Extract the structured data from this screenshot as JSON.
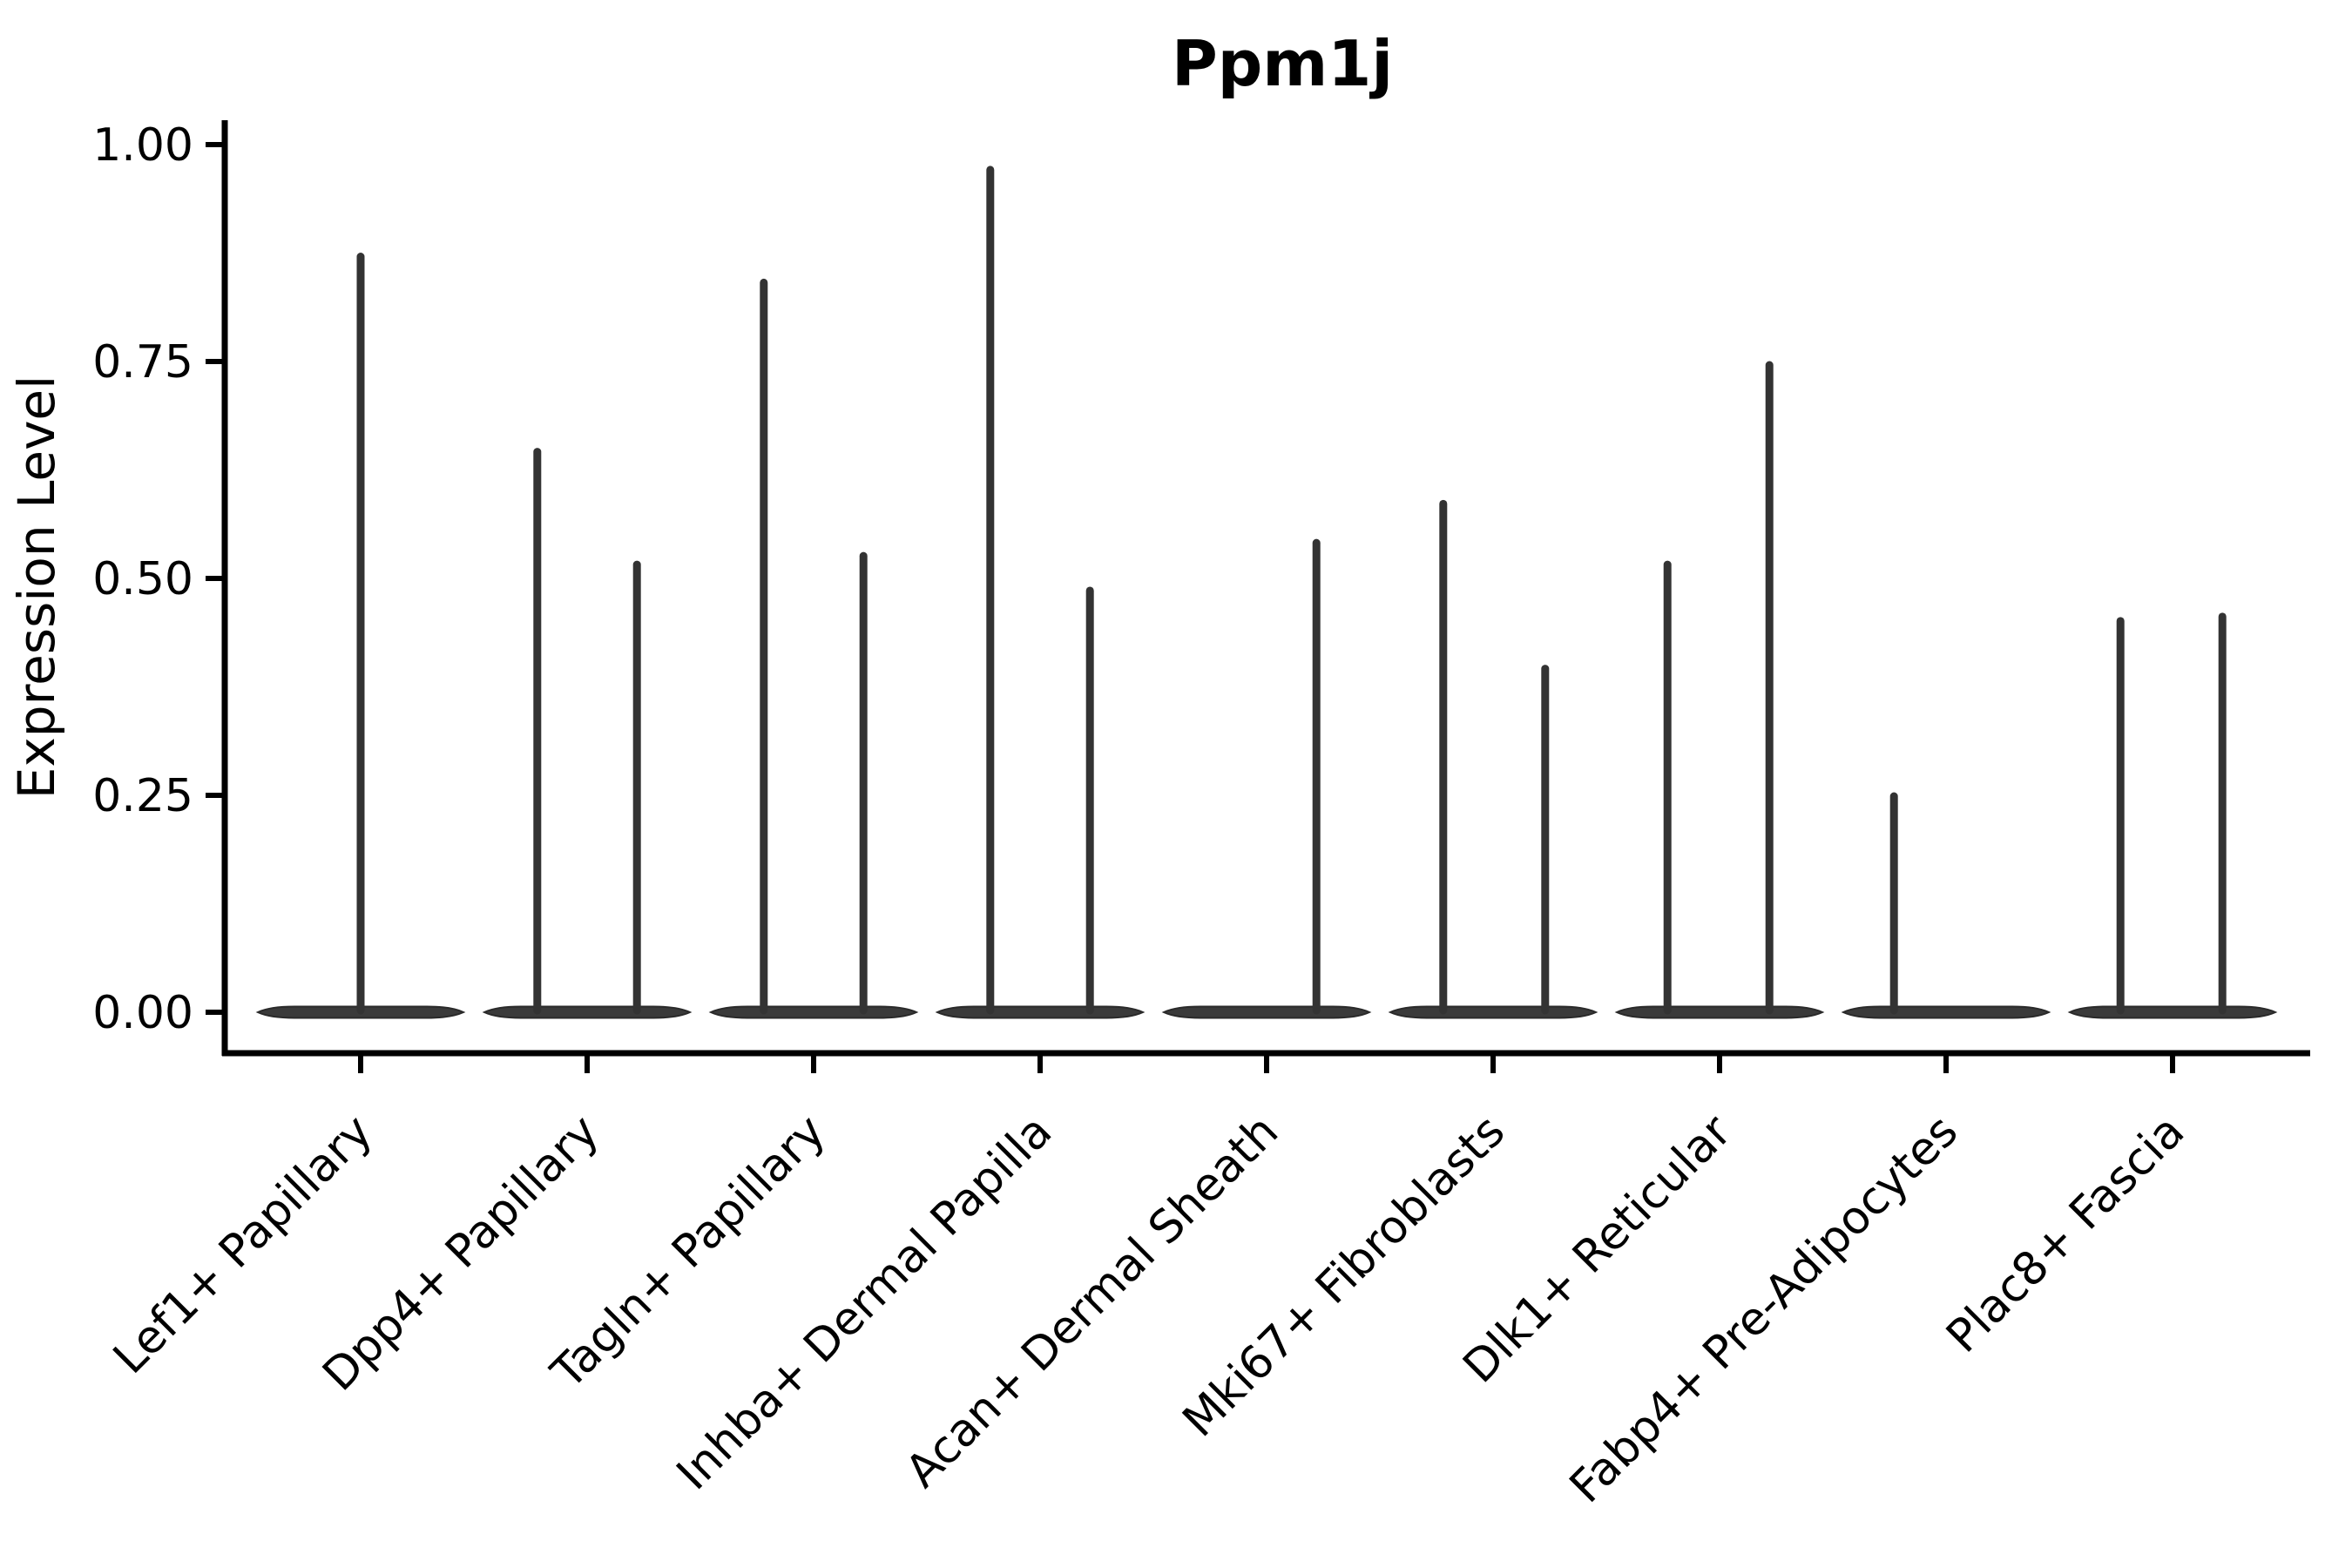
{
  "chart_data": {
    "type": "violin",
    "title": "Ppm1j",
    "ylabel": "Expression Level",
    "xlabel": "",
    "ylim": [
      0.0,
      1.0
    ],
    "grid": false,
    "legend": null,
    "yticks": [
      {
        "value": 0.0,
        "label": "0.00"
      },
      {
        "value": 0.25,
        "label": "0.25"
      },
      {
        "value": 0.5,
        "label": "0.50"
      },
      {
        "value": 0.75,
        "label": "0.75"
      },
      {
        "value": 1.0,
        "label": "1.00"
      }
    ],
    "categories": [
      "Lef1+ Papillary",
      "Dpp4+ Papillary",
      "Tagln+ Papillary",
      "Inhba+ Dermal Papilla",
      "Acan+ Dermal Sheath",
      "Mki67+ Fibroblasts",
      "Dlk1+ Reticular",
      "Fabp4+ Pre-Adipocytes",
      "Plac8+ Fascia"
    ],
    "violins": [
      {
        "category": "Lef1+ Papillary",
        "baseline_value": 0.0,
        "spikes": [
          {
            "offset": 0.0,
            "value": 0.875
          }
        ]
      },
      {
        "category": "Dpp4+ Papillary",
        "baseline_value": 0.0,
        "spikes": [
          {
            "offset": -0.22,
            "value": 0.65
          },
          {
            "offset": 0.22,
            "value": 0.52
          }
        ]
      },
      {
        "category": "Tagln+ Papillary",
        "baseline_value": 0.0,
        "spikes": [
          {
            "offset": -0.22,
            "value": 0.845
          },
          {
            "offset": 0.22,
            "value": 0.53
          }
        ]
      },
      {
        "category": "Inhba+ Dermal Papilla",
        "baseline_value": 0.0,
        "spikes": [
          {
            "offset": -0.22,
            "value": 0.975
          },
          {
            "offset": 0.22,
            "value": 0.49
          }
        ]
      },
      {
        "category": "Acan+ Dermal Sheath",
        "baseline_value": 0.0,
        "spikes": [
          {
            "offset": 0.22,
            "value": 0.545
          }
        ]
      },
      {
        "category": "Mki67+ Fibroblasts",
        "baseline_value": 0.0,
        "spikes": [
          {
            "offset": -0.22,
            "value": 0.59
          },
          {
            "offset": 0.23,
            "value": 0.4
          }
        ]
      },
      {
        "category": "Dlk1+ Reticular",
        "baseline_value": 0.0,
        "spikes": [
          {
            "offset": -0.23,
            "value": 0.52
          },
          {
            "offset": 0.22,
            "value": 0.75
          }
        ]
      },
      {
        "category": "Fabp4+ Pre-Adipocytes",
        "baseline_value": 0.0,
        "spikes": [
          {
            "offset": -0.23,
            "value": 0.253
          }
        ]
      },
      {
        "category": "Plac8+ Fascia",
        "baseline_value": 0.0,
        "spikes": [
          {
            "offset": -0.23,
            "value": 0.455
          },
          {
            "offset": 0.22,
            "value": 0.46
          }
        ]
      }
    ],
    "colors": {
      "background": "#ffffff",
      "axis": "#000000",
      "text": "#000000",
      "violin_fill": "#3a3a3a",
      "violin_edge": "#2a2a2a",
      "spike": "#333333"
    }
  }
}
